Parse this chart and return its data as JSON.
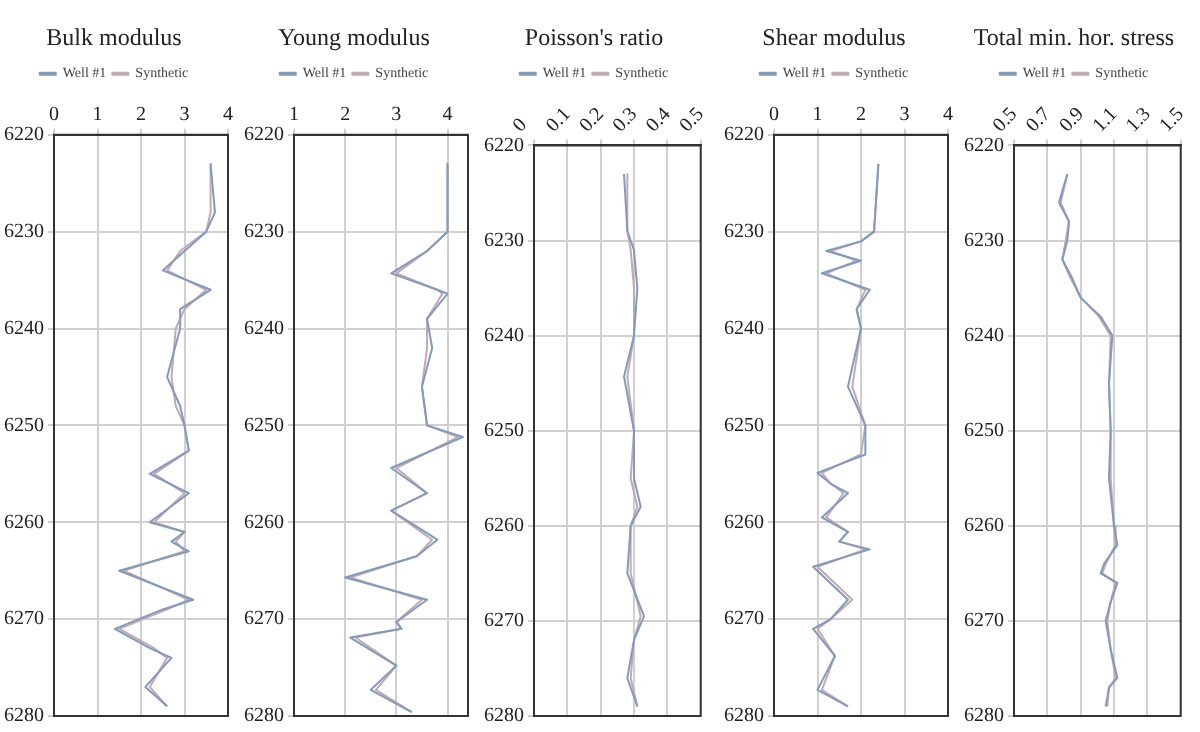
{
  "chart_data": [
    {
      "type": "line",
      "title": "Bulk modulus",
      "xlim": [
        0,
        4
      ],
      "xticks": [
        0,
        1,
        2,
        3,
        4
      ],
      "ylim": [
        6280,
        6220
      ],
      "yticks": [
        6220,
        6230,
        6240,
        6250,
        6260,
        6270,
        6280
      ],
      "grid": true,
      "legend": "top",
      "marker": "none",
      "series": [
        {
          "name": "Well #1",
          "color": "#7f9bbf",
          "x": [
            3.6,
            3.7,
            3.5,
            3.0,
            2.5,
            3.6,
            2.9,
            2.9,
            2.6,
            2.9,
            3.0,
            3.1,
            2.2,
            3.1,
            2.2,
            3.0,
            2.7,
            3.1,
            1.5,
            3.2,
            2.5,
            1.4,
            2.2,
            2.7,
            2.1,
            2.6
          ],
          "values": [
            6223,
            6228,
            6230,
            6232,
            6234,
            6236,
            6238,
            6240,
            6245,
            6248,
            6250,
            6252.6,
            6255,
            6257,
            6260,
            6261,
            6262,
            6263,
            6265,
            6268,
            6269,
            6271,
            6273,
            6274,
            6277,
            6279
          ]
        },
        {
          "name": "Synthetic",
          "color": "#c4a9b1",
          "x": [
            3.6,
            3.6,
            3.5,
            2.9,
            2.6,
            3.5,
            3.0,
            2.8,
            2.7,
            2.8,
            3.0,
            3.1,
            2.3,
            3.0,
            2.3,
            3.0,
            2.8,
            3.0,
            1.6,
            3.1,
            2.6,
            1.5,
            2.3,
            2.6,
            2.2,
            2.6
          ],
          "values": [
            6223,
            6228,
            6230,
            6232,
            6234,
            6236,
            6238,
            6240,
            6245,
            6248,
            6250,
            6252.6,
            6255,
            6257,
            6260,
            6261,
            6262,
            6263,
            6265,
            6268,
            6269,
            6271,
            6273,
            6274,
            6277,
            6279
          ]
        }
      ]
    },
    {
      "type": "line",
      "title": "Young modulus",
      "xlim": [
        1,
        4.4
      ],
      "xticks": [
        1,
        2,
        3,
        4
      ],
      "ylim": [
        6280,
        6220
      ],
      "yticks": [
        6220,
        6230,
        6240,
        6250,
        6260,
        6270,
        6280
      ],
      "grid": true,
      "legend": "top",
      "marker": "none",
      "series": [
        {
          "name": "Well #1",
          "color": "#7f9bbf",
          "x": [
            4.0,
            4.0,
            3.6,
            2.9,
            3.8,
            4.0,
            3.6,
            3.7,
            3.5,
            3.6,
            4.3,
            2.9,
            3.6,
            2.9,
            3.8,
            3.4,
            2.0,
            3.6,
            3.0,
            3.1,
            2.1,
            3.0,
            2.5,
            3.3
          ],
          "values": [
            6223,
            6230,
            6232,
            6234.3,
            6236,
            6236.4,
            6239,
            6242,
            6246,
            6250,
            6251.2,
            6254.4,
            6257,
            6258.8,
            6261.8,
            6263.5,
            6265.7,
            6268,
            6270.3,
            6271,
            6271.9,
            6274.8,
            6277.3,
            6279.6
          ]
        },
        {
          "name": "Synthetic",
          "color": "#c4a9b1",
          "x": [
            4.0,
            4.0,
            3.6,
            3.0,
            3.8,
            3.9,
            3.6,
            3.6,
            3.5,
            3.6,
            4.2,
            3.0,
            3.6,
            2.9,
            3.7,
            3.4,
            2.1,
            3.5,
            3.0,
            3.1,
            2.2,
            3.0,
            2.6,
            3.3
          ],
          "values": [
            6223,
            6230,
            6232,
            6234.3,
            6236,
            6236.4,
            6239,
            6242,
            6246,
            6250,
            6251.2,
            6254.4,
            6257,
            6258.8,
            6261.8,
            6263.5,
            6265.7,
            6268,
            6270.3,
            6271,
            6271.9,
            6274.8,
            6277.3,
            6279.6
          ]
        }
      ]
    },
    {
      "type": "line",
      "title": "Poisson's ratio",
      "xlim": [
        0,
        0.5
      ],
      "xticks": [
        0,
        0.1,
        0.2,
        0.3,
        0.4,
        0.5
      ],
      "ylim": [
        6280,
        6220
      ],
      "yticks": [
        6220,
        6230,
        6240,
        6250,
        6260,
        6270,
        6280
      ],
      "grid": true,
      "legend": "top",
      "marker": "none",
      "series": [
        {
          "name": "Well #1",
          "color": "#7f9bbf",
          "x": [
            0.27,
            0.28,
            0.3,
            0.31,
            0.3,
            0.27,
            0.3,
            0.3,
            0.32,
            0.29,
            0.28,
            0.33,
            0.3,
            0.28,
            0.31
          ],
          "values": [
            6223,
            6229,
            6231,
            6235,
            6240,
            6244.3,
            6250,
            6255,
            6258,
            6260,
            6265,
            6269.5,
            6272,
            6276,
            6279
          ]
        },
        {
          "name": "Synthetic",
          "color": "#c4a9b1",
          "x": [
            0.28,
            0.28,
            0.29,
            0.3,
            0.3,
            0.28,
            0.3,
            0.29,
            0.31,
            0.29,
            0.29,
            0.32,
            0.3,
            0.29,
            0.31
          ],
          "values": [
            6223,
            6229,
            6231,
            6235,
            6240,
            6244.3,
            6250,
            6255,
            6258,
            6260,
            6265,
            6269.5,
            6272,
            6276,
            6279
          ]
        }
      ]
    },
    {
      "type": "line",
      "title": "Shear modulus",
      "xlim": [
        0,
        4
      ],
      "xticks": [
        0,
        1,
        2,
        3,
        4
      ],
      "ylim": [
        6280,
        6220
      ],
      "yticks": [
        6220,
        6230,
        6240,
        6250,
        6260,
        6270,
        6280
      ],
      "grid": true,
      "legend": "top",
      "marker": "none",
      "series": [
        {
          "name": "Well #1",
          "color": "#7f9bbf",
          "x": [
            2.4,
            2.3,
            2.0,
            1.2,
            2.0,
            1.1,
            2.2,
            1.9,
            2.0,
            1.7,
            2.1,
            2.1,
            1.0,
            1.3,
            1.7,
            1.1,
            1.7,
            1.5,
            2.2,
            0.9,
            1.7,
            1.3,
            0.9,
            1.4,
            1.0,
            1.7
          ],
          "values": [
            6223,
            6230,
            6231,
            6232,
            6233,
            6234.3,
            6236,
            6238,
            6240,
            6246,
            6250,
            6253,
            6254.9,
            6256,
            6257,
            6259.5,
            6261,
            6262,
            6262.8,
            6264.6,
            6268,
            6270,
            6271,
            6273.8,
            6277.3,
            6279
          ]
        },
        {
          "name": "Synthetic",
          "color": "#c4a9b1",
          "x": [
            2.4,
            2.3,
            2.0,
            1.3,
            1.9,
            1.2,
            2.1,
            1.9,
            2.0,
            1.8,
            2.1,
            2.0,
            1.1,
            1.3,
            1.6,
            1.2,
            1.7,
            1.5,
            2.1,
            1.0,
            1.8,
            1.3,
            1.0,
            1.4,
            1.1,
            1.7
          ],
          "values": [
            6223,
            6230,
            6231,
            6232,
            6233,
            6234.3,
            6236,
            6238,
            6240,
            6246,
            6250,
            6253,
            6254.9,
            6256,
            6257,
            6259.5,
            6261,
            6262,
            6262.8,
            6264.6,
            6268,
            6270,
            6271,
            6273.8,
            6277.3,
            6279
          ]
        }
      ]
    },
    {
      "type": "line",
      "title": "Total min. hor. stress",
      "xlim": [
        0.5,
        1.5
      ],
      "xticks": [
        0.5,
        0.7,
        0.9,
        1.1,
        1.3,
        1.5
      ],
      "ylim": [
        6280,
        6220
      ],
      "yticks": [
        6220,
        6230,
        6240,
        6250,
        6260,
        6270,
        6280
      ],
      "grid": true,
      "legend": "top",
      "marker": "none",
      "series": [
        {
          "name": "Well #1",
          "color": "#7f9bbf",
          "x": [
            0.82,
            0.77,
            0.83,
            0.82,
            0.79,
            0.85,
            0.9,
            1.02,
            1.09,
            1.07,
            1.08,
            1.07,
            1.1,
            1.12,
            1.04,
            1.02,
            1.12,
            1.08,
            1.05,
            1.08,
            1.12,
            1.07,
            1.05
          ],
          "values": [
            6223,
            6226,
            6228,
            6230,
            6232,
            6234,
            6236,
            6238,
            6240,
            6245,
            6250,
            6255,
            6260,
            6262,
            6264,
            6265,
            6266,
            6268,
            6270,
            6273,
            6276,
            6277,
            6279
          ]
        },
        {
          "name": "Synthetic",
          "color": "#c4a9b1",
          "x": [
            0.82,
            0.78,
            0.83,
            0.81,
            0.79,
            0.84,
            0.9,
            1.01,
            1.08,
            1.07,
            1.08,
            1.08,
            1.1,
            1.11,
            1.05,
            1.03,
            1.11,
            1.08,
            1.06,
            1.08,
            1.11,
            1.07,
            1.06
          ],
          "values": [
            6223,
            6226,
            6228,
            6230,
            6232,
            6234,
            6236,
            6238,
            6240,
            6245,
            6250,
            6255,
            6260,
            6262,
            6264,
            6265,
            6266,
            6268,
            6270,
            6273,
            6276,
            6277,
            6279
          ]
        }
      ]
    }
  ]
}
